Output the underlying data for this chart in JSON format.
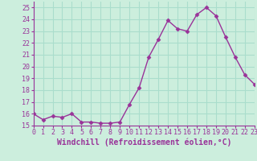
{
  "x": [
    0,
    1,
    2,
    3,
    4,
    5,
    6,
    7,
    8,
    9,
    10,
    11,
    12,
    13,
    14,
    15,
    16,
    17,
    18,
    19,
    20,
    21,
    22,
    23
  ],
  "y": [
    16.0,
    15.5,
    15.8,
    15.7,
    16.0,
    15.3,
    15.3,
    15.2,
    15.2,
    15.3,
    16.8,
    18.2,
    20.8,
    22.3,
    23.9,
    23.2,
    23.0,
    24.4,
    25.0,
    24.3,
    22.5,
    20.8,
    19.3,
    18.5
  ],
  "line_color": "#993399",
  "marker": "D",
  "markersize": 2.5,
  "linewidth": 1.0,
  "xlabel": "Windchill (Refroidissement éolien,°C)",
  "xlim": [
    0,
    23
  ],
  "ylim": [
    15.0,
    25.5
  ],
  "yticks": [
    15,
    16,
    17,
    18,
    19,
    20,
    21,
    22,
    23,
    24,
    25
  ],
  "xticks": [
    0,
    1,
    2,
    3,
    4,
    5,
    6,
    7,
    8,
    9,
    10,
    11,
    12,
    13,
    14,
    15,
    16,
    17,
    18,
    19,
    20,
    21,
    22,
    23
  ],
  "bg_color": "#cceedd",
  "grid_color": "#aaddcc",
  "tick_label_fontsize": 6.0,
  "xlabel_fontsize": 7.0,
  "xlabel_color": "#993399",
  "tick_label_color": "#993399",
  "axis_color": "#993399"
}
